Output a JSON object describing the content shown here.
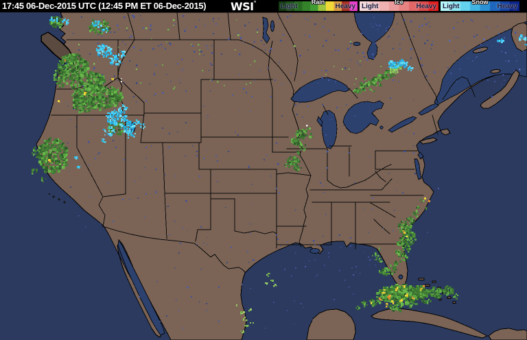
{
  "header": {
    "timestamp": "17:45 06-Dec-2015 UTC  (12:45 PM ET 06-Dec-2015)",
    "logo_text": "WSI",
    "logo_mark": "°"
  },
  "legend": {
    "sections": [
      {
        "label": "Rain",
        "light_label": "Light",
        "heavy_label": "Heavy",
        "stops": [
          "#123911",
          "#1d5019",
          "#286a22",
          "#34832b",
          "#419c34",
          "#9cc43e",
          "#f0d838",
          "#db9b3f",
          "#a83226",
          "#e63cc8"
        ]
      },
      {
        "label": "Ice",
        "light_label": "Light",
        "heavy_label": "Heavy",
        "stops": [
          "#f7dada",
          "#f3c6c6",
          "#efb1b1",
          "#eb9b9b",
          "#e78383",
          "#e26868",
          "#dc4a4a",
          "#e01f1f"
        ]
      },
      {
        "label": "Snow",
        "light_label": "Light",
        "heavy_label": "Heavy",
        "stops": [
          "#b4f6fa",
          "#8ce8f5",
          "#63d3ee",
          "#40b5e4",
          "#2b91d4",
          "#1f67bd",
          "#1542a2",
          "#0c2488"
        ]
      }
    ]
  },
  "map": {
    "colors": {
      "ocean": "#2b3a5e",
      "land": "#7b6456",
      "inland_water": "#2c416e",
      "border": "#0a0a0a"
    },
    "seed": 1337,
    "palettes": {
      "g": [
        "#2e5c2a",
        "#3c7531",
        "#4a8e39",
        "#59a542",
        "#6bb84b",
        "#3f7a33"
      ],
      "gl": [
        "#74b24e",
        "#8ac45a",
        "#9cd266"
      ],
      "c": [
        "#2fc4ef",
        "#4fd2f5",
        "#74e0f8",
        "#27a8dc"
      ],
      "y": [
        "#eed93a",
        "#e6c52e"
      ],
      "o": [
        "#e8a23c",
        "#dd8a2c"
      ],
      "w": [
        "#ececec"
      ],
      "b": [
        "#42519b",
        "#3a4a82",
        "#4d5ca8"
      ],
      "gn": [
        "#6fae4c",
        "#84c258"
      ],
      "b2": [
        "#4a5da8",
        "#5a6cb6"
      ]
    },
    "radar_cells": [
      [
        80,
        31,
        10,
        8,
        55,
        2.5,
        "g"
      ],
      [
        95,
        30,
        5,
        4,
        14,
        2,
        "c"
      ],
      [
        78,
        27,
        6,
        4,
        14,
        2,
        "c"
      ],
      [
        143,
        38,
        16,
        11,
        80,
        2.5,
        "g"
      ],
      [
        140,
        34,
        9,
        5,
        20,
        2,
        "c"
      ],
      [
        152,
        44,
        6,
        4,
        12,
        2,
        "c"
      ],
      [
        105,
        95,
        22,
        18,
        230,
        3,
        "g"
      ],
      [
        125,
        118,
        25,
        16,
        200,
        3,
        "g"
      ],
      [
        88,
        112,
        10,
        14,
        70,
        2.5,
        "g"
      ],
      [
        150,
        73,
        12,
        9,
        55,
        2.5,
        "c"
      ],
      [
        166,
        86,
        9,
        7,
        35,
        2.5,
        "c"
      ],
      [
        176,
        78,
        5,
        4,
        12,
        2,
        "c"
      ],
      [
        140,
        140,
        36,
        18,
        300,
        3,
        "g"
      ],
      [
        120,
        152,
        16,
        11,
        90,
        2.5,
        "g"
      ],
      [
        168,
        185,
        13,
        10,
        70,
        2.5,
        "g"
      ],
      [
        168,
        170,
        15,
        11,
        80,
        2.5,
        "c"
      ],
      [
        185,
        183,
        11,
        9,
        50,
        2.5,
        "c"
      ],
      [
        158,
        190,
        9,
        7,
        30,
        2,
        "c"
      ],
      [
        178,
        157,
        7,
        5,
        18,
        2,
        "c"
      ],
      [
        190,
        196,
        6,
        5,
        14,
        2,
        "c"
      ],
      [
        197,
        177,
        6,
        4,
        12,
        2,
        "c"
      ],
      [
        207,
        183,
        4,
        3,
        8,
        2,
        "c"
      ],
      [
        150,
        203,
        4,
        3,
        7,
        2,
        "c"
      ],
      [
        110,
        228,
        3,
        3,
        6,
        2,
        "c"
      ],
      [
        113,
        241,
        3,
        3,
        6,
        2,
        "c"
      ],
      [
        75,
        225,
        22,
        25,
        230,
        3,
        "g"
      ],
      [
        52,
        222,
        6,
        8,
        22,
        2,
        "g"
      ],
      [
        48,
        248,
        5,
        5,
        12,
        2,
        "g"
      ],
      [
        62,
        262,
        4,
        4,
        8,
        2,
        "g"
      ],
      [
        72,
        232,
        2.5,
        2.5,
        4,
        2,
        "y"
      ],
      [
        163,
        114,
        2,
        2,
        3,
        2,
        "y"
      ],
      [
        123,
        135,
        2,
        2,
        3,
        2,
        "y"
      ],
      [
        85,
        147,
        2,
        2,
        2,
        2,
        "y"
      ],
      [
        176,
        116,
        2,
        2,
        2,
        2,
        "w"
      ],
      [
        93,
        87,
        1.5,
        1.5,
        2,
        2,
        "o"
      ],
      [
        438,
        194,
        8,
        7,
        45,
        2.5,
        "g"
      ],
      [
        430,
        205,
        7,
        6,
        32,
        2.5,
        "g"
      ],
      [
        440,
        214,
        5,
        5,
        18,
        2,
        "g"
      ],
      [
        426,
        233,
        8,
        7,
        40,
        2.5,
        "g"
      ],
      [
        432,
        243,
        6,
        5,
        22,
        2,
        "g"
      ],
      [
        418,
        240,
        5,
        4,
        14,
        2,
        "g"
      ],
      [
        447,
        187,
        4,
        3,
        9,
        2,
        "g"
      ],
      [
        452,
        197,
        3,
        3,
        7,
        2,
        "g"
      ],
      [
        433,
        222,
        3,
        3,
        7,
        2,
        "g"
      ],
      [
        447,
        183,
        1.5,
        1.5,
        2,
        2,
        "w"
      ],
      [
        520,
        131,
        6,
        4,
        16,
        2.5,
        "g"
      ],
      [
        529,
        126,
        7,
        4,
        18,
        2.5,
        "g"
      ],
      [
        538,
        121,
        7,
        4,
        18,
        2.5,
        "g"
      ],
      [
        547,
        117,
        8,
        5,
        22,
        2.5,
        "g"
      ],
      [
        556,
        111,
        8,
        5,
        22,
        2.5,
        "g"
      ],
      [
        565,
        106,
        8,
        5,
        22,
        2.5,
        "g"
      ],
      [
        573,
        101,
        8,
        5,
        22,
        2.5,
        "gl"
      ],
      [
        578,
        97,
        6,
        4,
        14,
        2.5,
        "gl"
      ],
      [
        574,
        93,
        9,
        6,
        40,
        2.5,
        "c"
      ],
      [
        586,
        91,
        7,
        5,
        26,
        2.5,
        "c"
      ],
      [
        597,
        99,
        4,
        3,
        10,
        2,
        "c"
      ],
      [
        540,
        130,
        4,
        3,
        8,
        2,
        "g"
      ],
      [
        552,
        124,
        4,
        3,
        8,
        2,
        "g"
      ],
      [
        530,
        113,
        3,
        2,
        5,
        2,
        "g"
      ],
      [
        524,
        120,
        3,
        2,
        5,
        2,
        "g"
      ],
      [
        728,
        57,
        6,
        3,
        10,
        2.5,
        "c"
      ],
      [
        760,
        54,
        5,
        4,
        10,
        2.5,
        "c"
      ],
      [
        766,
        64,
        3,
        3,
        6,
        2,
        "c"
      ],
      [
        588,
        330,
        10,
        9,
        60,
        2.5,
        "g"
      ],
      [
        594,
        342,
        9,
        8,
        48,
        2.5,
        "g"
      ],
      [
        585,
        352,
        8,
        7,
        40,
        2.5,
        "g"
      ],
      [
        592,
        360,
        7,
        6,
        30,
        2,
        "g"
      ],
      [
        582,
        368,
        6,
        6,
        26,
        2,
        "g"
      ],
      [
        588,
        375,
        5,
        5,
        18,
        2,
        "g"
      ],
      [
        578,
        382,
        4,
        4,
        10,
        2,
        "g"
      ],
      [
        598,
        320,
        6,
        5,
        22,
        2,
        "g"
      ],
      [
        604,
        310,
        5,
        4,
        14,
        2,
        "g"
      ],
      [
        608,
        300,
        4,
        3,
        9,
        2,
        "g"
      ],
      [
        613,
        292,
        3,
        3,
        7,
        2,
        "g"
      ],
      [
        600,
        350,
        5,
        5,
        16,
        2,
        "g"
      ],
      [
        575,
        390,
        3,
        3,
        7,
        2,
        "g"
      ],
      [
        572,
        398,
        3,
        2,
        5,
        2,
        "g"
      ],
      [
        620,
        302,
        2,
        2,
        4,
        2,
        "g"
      ],
      [
        588,
        336,
        2,
        2,
        3,
        2,
        "y"
      ],
      [
        592,
        345,
        1.5,
        1.5,
        2,
        2,
        "y"
      ],
      [
        623,
        291,
        2,
        2,
        3,
        2,
        "o"
      ],
      [
        618,
        287,
        1.5,
        1.5,
        2,
        2,
        "y"
      ],
      [
        560,
        395,
        8,
        6,
        35,
        2.5,
        "g"
      ],
      [
        572,
        388,
        5,
        4,
        12,
        2,
        "g"
      ],
      [
        550,
        378,
        4,
        3,
        9,
        2,
        "g"
      ],
      [
        545,
        370,
        3,
        3,
        7,
        2,
        "g"
      ],
      [
        552,
        362,
        2,
        2,
        4,
        2,
        "g"
      ],
      [
        585,
        428,
        26,
        14,
        300,
        3,
        "g"
      ],
      [
        560,
        428,
        12,
        10,
        100,
        3,
        "g"
      ],
      [
        610,
        425,
        14,
        9,
        100,
        3,
        "g"
      ],
      [
        635,
        425,
        10,
        7,
        55,
        2.5,
        "g"
      ],
      [
        652,
        422,
        8,
        6,
        35,
        2.5,
        "g"
      ],
      [
        663,
        430,
        5,
        4,
        12,
        2,
        "g"
      ],
      [
        545,
        440,
        8,
        5,
        26,
        2.5,
        "g"
      ],
      [
        530,
        442,
        5,
        4,
        12,
        2,
        "g"
      ],
      [
        520,
        448,
        4,
        3,
        8,
        2,
        "g"
      ],
      [
        575,
        448,
        10,
        5,
        30,
        2.5,
        "g"
      ],
      [
        598,
        442,
        8,
        5,
        26,
        2.5,
        "g"
      ],
      [
        620,
        438,
        6,
        4,
        16,
        2,
        "g"
      ],
      [
        558,
        424,
        3,
        3,
        7,
        2,
        "y"
      ],
      [
        566,
        432,
        3,
        3,
        7,
        2,
        "o"
      ],
      [
        577,
        420,
        3,
        2,
        5,
        2,
        "y"
      ],
      [
        584,
        437,
        3,
        2,
        6,
        2,
        "y"
      ],
      [
        592,
        428,
        2,
        2,
        4,
        2,
        "y"
      ],
      [
        600,
        434,
        2,
        2,
        4,
        2,
        "o"
      ],
      [
        612,
        420,
        2,
        2,
        4,
        2,
        "y"
      ],
      [
        617,
        416,
        2,
        2,
        3,
        2,
        "o"
      ],
      [
        553,
        435,
        2,
        2,
        4,
        2,
        "o"
      ],
      [
        563,
        444,
        2,
        2,
        4,
        2,
        "y"
      ],
      [
        571,
        440,
        2,
        2,
        3,
        2,
        "y"
      ],
      [
        541,
        441,
        2,
        2,
        3,
        2,
        "y"
      ],
      [
        588,
        416,
        2,
        2,
        3,
        2,
        "y"
      ],
      [
        548,
        373,
        2,
        2,
        3,
        2,
        "g"
      ],
      [
        556,
        381,
        2,
        2,
        3,
        2,
        "g"
      ],
      [
        352,
        455,
        3,
        3,
        6,
        2,
        "gl"
      ],
      [
        356,
        465,
        3,
        3,
        6,
        2,
        "gl"
      ],
      [
        358,
        475,
        3,
        2,
        5,
        2,
        "gl"
      ],
      [
        352,
        483,
        3,
        2,
        4,
        2,
        "gl"
      ],
      [
        362,
        450,
        2,
        2,
        3,
        2,
        "gl"
      ],
      [
        366,
        470,
        2,
        2,
        3,
        2,
        "gl"
      ],
      [
        390,
        400,
        3,
        2,
        4,
        2,
        "gl"
      ],
      [
        395,
        408,
        2,
        2,
        3,
        2,
        "gl"
      ],
      [
        400,
        415,
        2,
        2,
        3,
        2,
        "gl"
      ],
      [
        388,
        412,
        2,
        2,
        3,
        2,
        "gl"
      ],
      [
        345,
        445,
        2,
        2,
        3,
        2,
        "gl"
      ]
    ],
    "noise_groups": [
      [
        100,
        20,
        400,
        140,
        130,
        "b",
        2
      ],
      [
        405,
        20,
        640,
        125,
        100,
        "b",
        2
      ],
      [
        95,
        140,
        640,
        340,
        150,
        "b",
        1.8
      ],
      [
        200,
        340,
        520,
        480,
        60,
        "b",
        1.8
      ],
      [
        645,
        20,
        766,
        140,
        40,
        "b",
        2
      ],
      [
        420,
        340,
        560,
        400,
        25,
        "b",
        1.8
      ],
      [
        110,
        25,
        400,
        135,
        35,
        "gn",
        2
      ],
      [
        415,
        60,
        560,
        125,
        12,
        "gn",
        2
      ],
      [
        650,
        40,
        766,
        115,
        18,
        "b2",
        2
      ]
    ]
  }
}
